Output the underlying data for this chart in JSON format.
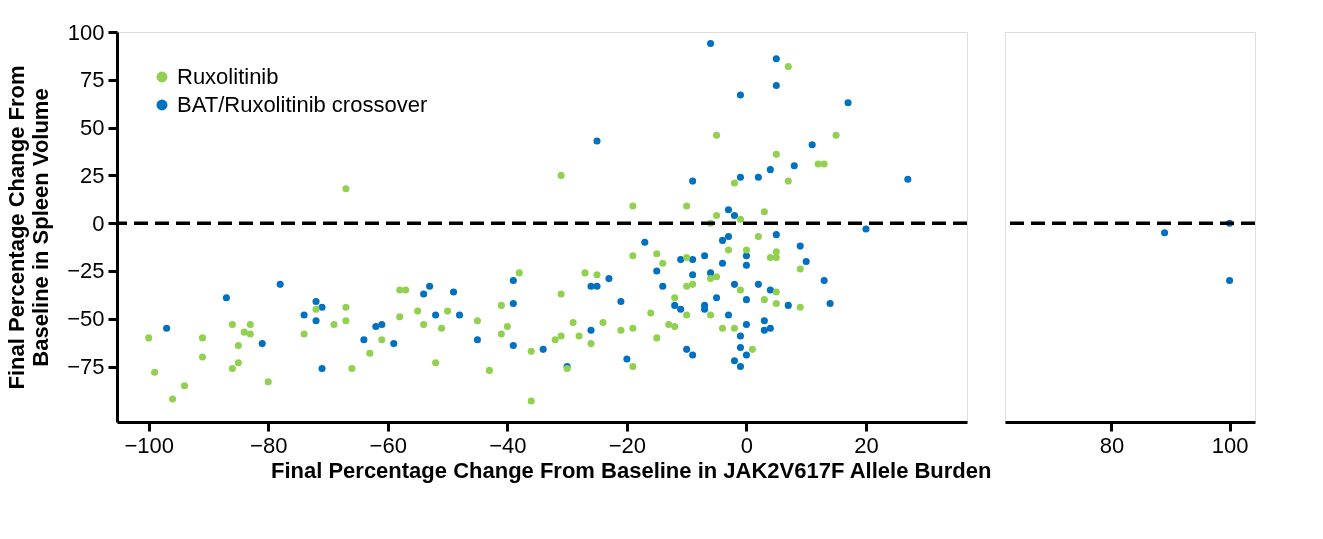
{
  "chart_data": [
    {
      "type": "scatter",
      "xlabel": "Final Percentage Change From Baseline in JAK2V617F Allele Burden",
      "ylabel": "Final Percentage Change From\nBaseline in Spleen Volume",
      "xlim": [
        -105.3,
        36.9
      ],
      "ylim": [
        -104,
        100
      ],
      "xticks": [
        -100,
        -80,
        -60,
        -40,
        -20,
        0,
        20
      ],
      "yticks": [
        -75,
        -50,
        -25,
        0,
        25,
        50,
        75,
        100
      ],
      "grid": false,
      "legend": "top left",
      "marker": "circle",
      "ref_lines": [
        {
          "axis": "y",
          "value": 0,
          "line_style": "dashed",
          "color": "#000000"
        }
      ],
      "series": [
        {
          "name": "Ruxolitinib",
          "color": "#92d050",
          "x": [
            -100,
            -99,
            -96,
            -94,
            -91,
            -91,
            -86,
            -86,
            -85,
            -85,
            -84,
            -83,
            -83,
            -80,
            -74,
            -72,
            -69,
            -67,
            -67,
            -67,
            -66,
            -63,
            -61,
            -58,
            -58,
            -57,
            -55,
            -54,
            -52,
            -51,
            -50,
            -45,
            -43,
            -41,
            -41,
            -40,
            -38,
            -36,
            -36,
            -32,
            -31,
            -31,
            -31,
            -30,
            -29,
            -28,
            -27,
            -26,
            -25,
            -24,
            -21,
            -19,
            -19,
            -19,
            -19,
            -16,
            -15,
            -15,
            -14,
            -13,
            -12,
            -12,
            -10,
            -10,
            -10,
            -10,
            -9,
            -6,
            -6,
            -6,
            -5,
            -5,
            -5,
            -4,
            -3,
            -2,
            -2,
            -1,
            -1,
            0,
            1,
            2,
            3,
            3,
            4,
            5,
            5,
            5,
            5,
            5,
            7,
            7,
            9,
            9,
            12,
            13,
            15
          ],
          "values": [
            -60,
            -78,
            -92,
            -85,
            -60,
            -70,
            -76,
            -53,
            -73,
            -64,
            -57,
            -58,
            -53,
            -83,
            -58,
            -45,
            -53,
            18,
            -44,
            -51,
            -76,
            -68,
            -61,
            -49,
            -35,
            -35,
            -46,
            -53,
            -73,
            -55,
            -46,
            -51,
            -77,
            -58,
            -43,
            -54,
            -26,
            -67,
            -93,
            -61,
            -37,
            25,
            -59,
            -76,
            -52,
            -59,
            -26,
            -63,
            -27,
            -52,
            -56,
            -55,
            9,
            -17,
            -75,
            -47,
            -16,
            -60,
            -21,
            -53,
            -39,
            -54,
            -33,
            -48,
            -18,
            9,
            -32,
            0,
            -48,
            -29,
            46,
            4,
            -28,
            -55,
            -14,
            21,
            -55,
            -35,
            2,
            -14,
            -66,
            -7,
            6,
            -40,
            -18,
            -36,
            -42,
            -18,
            -15,
            36,
            22,
            82,
            -24,
            -44,
            31,
            31,
            46
          ]
        },
        {
          "name": "BAT/Ruxolitinib crossover",
          "color": "#0070c0",
          "x": [
            -97,
            -87,
            -81,
            -78,
            -74,
            -72,
            -72,
            -71,
            -71,
            -64,
            -62,
            -61,
            -59,
            -54,
            -53,
            -52,
            -49,
            -48,
            -45,
            -39,
            -39,
            -39,
            -34,
            -30,
            -26,
            -25,
            -25,
            -26,
            -23,
            -21,
            -20,
            -17,
            -15,
            -14,
            -12,
            -11,
            -11,
            -10,
            -9,
            -9,
            -9,
            -9,
            -7,
            -7,
            -7,
            -6,
            -6,
            -5,
            -4,
            -4,
            -3,
            -3,
            -3,
            -2,
            -2,
            -2,
            -1,
            -1,
            -1,
            -1,
            -1,
            0,
            0,
            0,
            0,
            0,
            2,
            2,
            3,
            3,
            4,
            4,
            4,
            5,
            5,
            5,
            7,
            8,
            9,
            10,
            11,
            13,
            14,
            17,
            20,
            27
          ],
          "values": [
            -55,
            -39,
            -63,
            -32,
            -48,
            -41,
            -51,
            -76,
            -44,
            -61,
            -54,
            -53,
            -63,
            -37,
            -33,
            -48,
            -36,
            -48,
            -61,
            -42,
            -30,
            -64,
            -66,
            -75,
            -33,
            -33,
            43,
            -56,
            -29,
            -41,
            -71,
            -10,
            -25,
            -33,
            -43,
            -45,
            -19,
            -66,
            -69,
            -27,
            22,
            -19,
            -43,
            -45,
            -17,
            94,
            -26,
            -39,
            -21,
            -9,
            -48,
            -7,
            7,
            4,
            -32,
            -72,
            24,
            67,
            -59,
            -65,
            -75,
            -22,
            -40,
            -53,
            -69,
            -17,
            24,
            -32,
            -51,
            -56,
            -55,
            -35,
            28,
            72,
            -6,
            86,
            -43,
            30,
            -12,
            -20,
            41,
            -30,
            -42,
            63,
            -3,
            23
          ]
        }
      ]
    },
    {
      "type": "scatter",
      "xlim": [
        62,
        104.3
      ],
      "ylim": [
        -104,
        100
      ],
      "xticks": [
        80,
        100
      ],
      "tick_labels": "x",
      "grid": false,
      "marker": "circle",
      "ref_lines": [
        {
          "axis": "y",
          "value": 0,
          "line_style": "dashed",
          "color": "#000000"
        }
      ],
      "series": [
        {
          "name": "BAT/Ruxolitinib crossover",
          "color": "#0070c0",
          "x": [
            89,
            100,
            100
          ],
          "values": [
            -5,
            0,
            -30
          ]
        }
      ]
    }
  ]
}
